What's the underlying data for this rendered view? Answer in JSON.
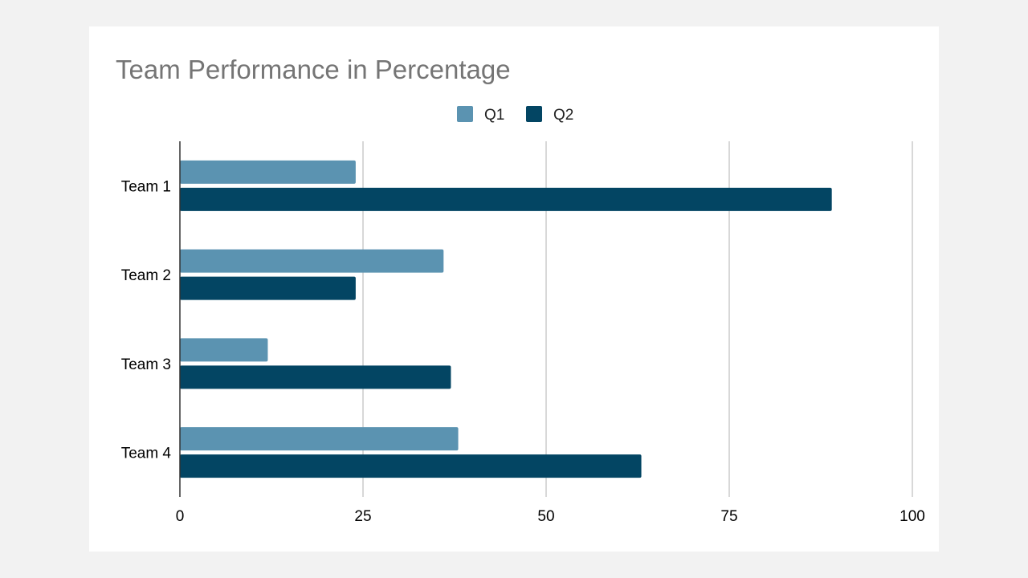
{
  "chart_data": {
    "type": "bar",
    "orientation": "horizontal",
    "title": "Team Performance in Percentage",
    "categories": [
      "Team 1",
      "Team 2",
      "Team 3",
      "Team 4"
    ],
    "series": [
      {
        "name": "Q1",
        "color": "#5b93b1",
        "values": [
          24,
          36,
          12,
          38
        ]
      },
      {
        "name": "Q2",
        "color": "#034563",
        "values": [
          89,
          24,
          37,
          63
        ]
      }
    ],
    "xlim": [
      0,
      100
    ],
    "xticks": [
      "0",
      "25",
      "50",
      "75",
      "100"
    ],
    "xlabel": "",
    "ylabel": "",
    "grid": "vertical",
    "legend": "top-center"
  }
}
